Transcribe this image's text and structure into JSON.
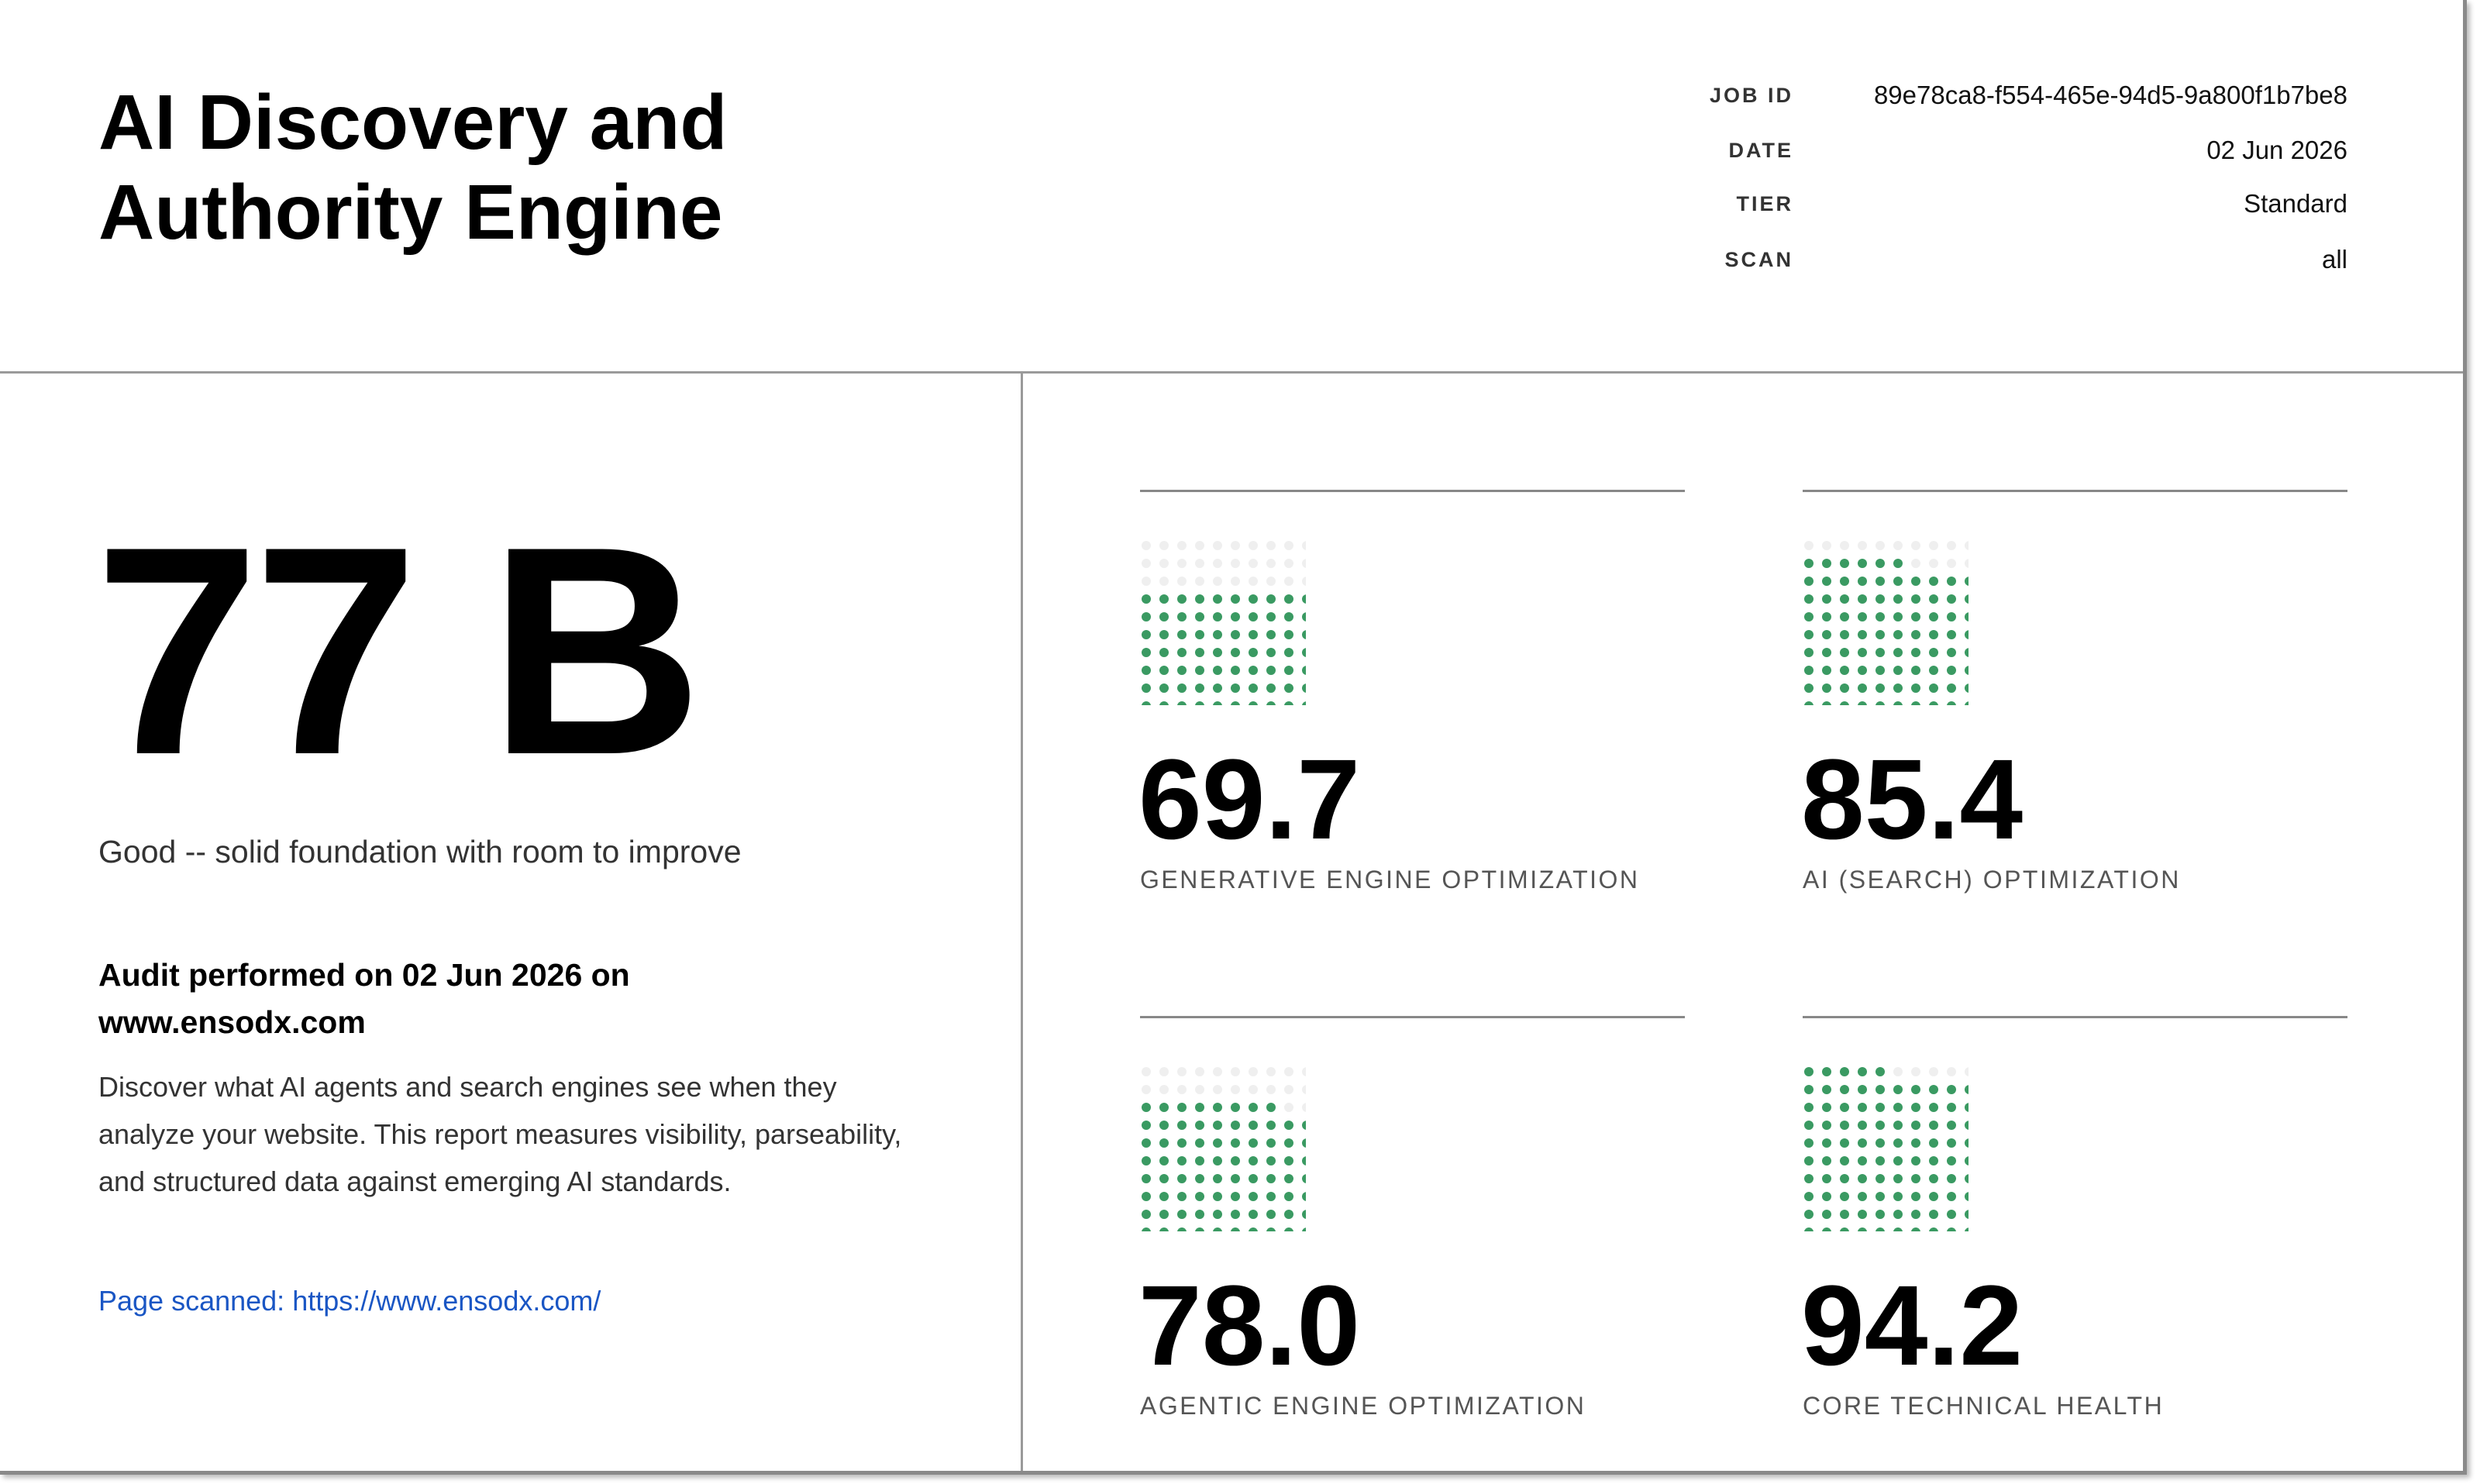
{
  "header": {
    "title": "AI Discovery and Authority Engine",
    "meta": [
      {
        "label": "JOB ID",
        "value": "89e78ca8-f554-465e-94d5-9a800f1b7be8"
      },
      {
        "label": "DATE",
        "value": "02 Jun 2026"
      },
      {
        "label": "TIER",
        "value": "Standard"
      },
      {
        "label": "SCAN",
        "value": "all"
      }
    ]
  },
  "summary": {
    "score": 77,
    "grade": "B",
    "verdict": "Good -- solid foundation with room to improve",
    "audit_heading": "Audit performed on 02 Jun 2026 on www.ensodx.com",
    "description": "Discover what AI agents and search engines see when they analyze your website. This report measures visibility, parseability, and structured data against emerging AI standards.",
    "page_scanned_label": "Page scanned:",
    "page_scanned_url": "https://www.ensodx.com/"
  },
  "chart_data": {
    "type": "dot-grid",
    "categories": [
      "GENERATIVE ENGINE OPTIMIZATION",
      "AI (SEARCH) OPTIMIZATION",
      "AGENTIC ENGINE OPTIMIZATION",
      "CORE TECHNICAL HEALTH"
    ],
    "values": [
      69.7,
      85.4,
      78.0,
      94.2
    ],
    "value_labels": [
      "69.7",
      "85.4",
      "78.0",
      "94.2"
    ],
    "ylim": [
      0,
      100
    ],
    "color": "#3a9a62",
    "empty_color": "#efefef"
  }
}
